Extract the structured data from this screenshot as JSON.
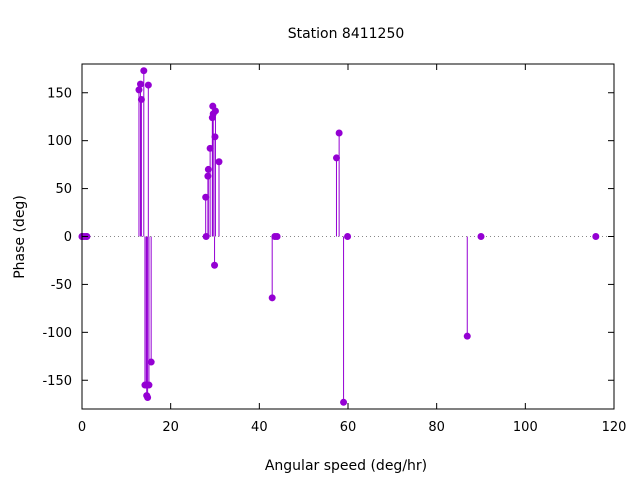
{
  "chart_data": {
    "type": "scatter",
    "style": "impulses-with-points",
    "title": "Station 8411250",
    "xlabel": "Angular speed (deg/hr)",
    "ylabel": "Phase (deg)",
    "xlim": [
      0,
      120
    ],
    "ylim": [
      -180,
      180
    ],
    "xticks": [
      0,
      20,
      40,
      60,
      80,
      100,
      120
    ],
    "yticks": [
      -150,
      -100,
      -50,
      0,
      50,
      100,
      150
    ],
    "grid": false,
    "legend": "none",
    "color": "#9400d3",
    "series": [
      {
        "points": [
          [
            0.0,
            0
          ],
          [
            0.04,
            0
          ],
          [
            0.08,
            0
          ],
          [
            0.5,
            0
          ],
          [
            1.0,
            0
          ],
          [
            1.1,
            0
          ],
          [
            12.85,
            153
          ],
          [
            13.2,
            159
          ],
          [
            13.4,
            143
          ],
          [
            13.94,
            173
          ],
          [
            14.2,
            -155
          ],
          [
            14.5,
            -155
          ],
          [
            14.6,
            -166
          ],
          [
            14.8,
            -168
          ],
          [
            14.96,
            158
          ],
          [
            15.1,
            -155
          ],
          [
            15.6,
            -131
          ],
          [
            27.9,
            41
          ],
          [
            28.0,
            0
          ],
          [
            28.4,
            63
          ],
          [
            28.5,
            70
          ],
          [
            28.9,
            92
          ],
          [
            29.4,
            124
          ],
          [
            29.5,
            136
          ],
          [
            29.6,
            128
          ],
          [
            29.9,
            -30
          ],
          [
            30.0,
            104
          ],
          [
            30.1,
            131
          ],
          [
            30.9,
            78
          ],
          [
            42.9,
            -64
          ],
          [
            43.5,
            0
          ],
          [
            44.0,
            0
          ],
          [
            57.4,
            82
          ],
          [
            58.0,
            108
          ],
          [
            59.0,
            -173
          ],
          [
            59.9,
            0
          ],
          [
            86.9,
            -104
          ],
          [
            90.0,
            0
          ],
          [
            115.9,
            0
          ]
        ]
      }
    ]
  }
}
